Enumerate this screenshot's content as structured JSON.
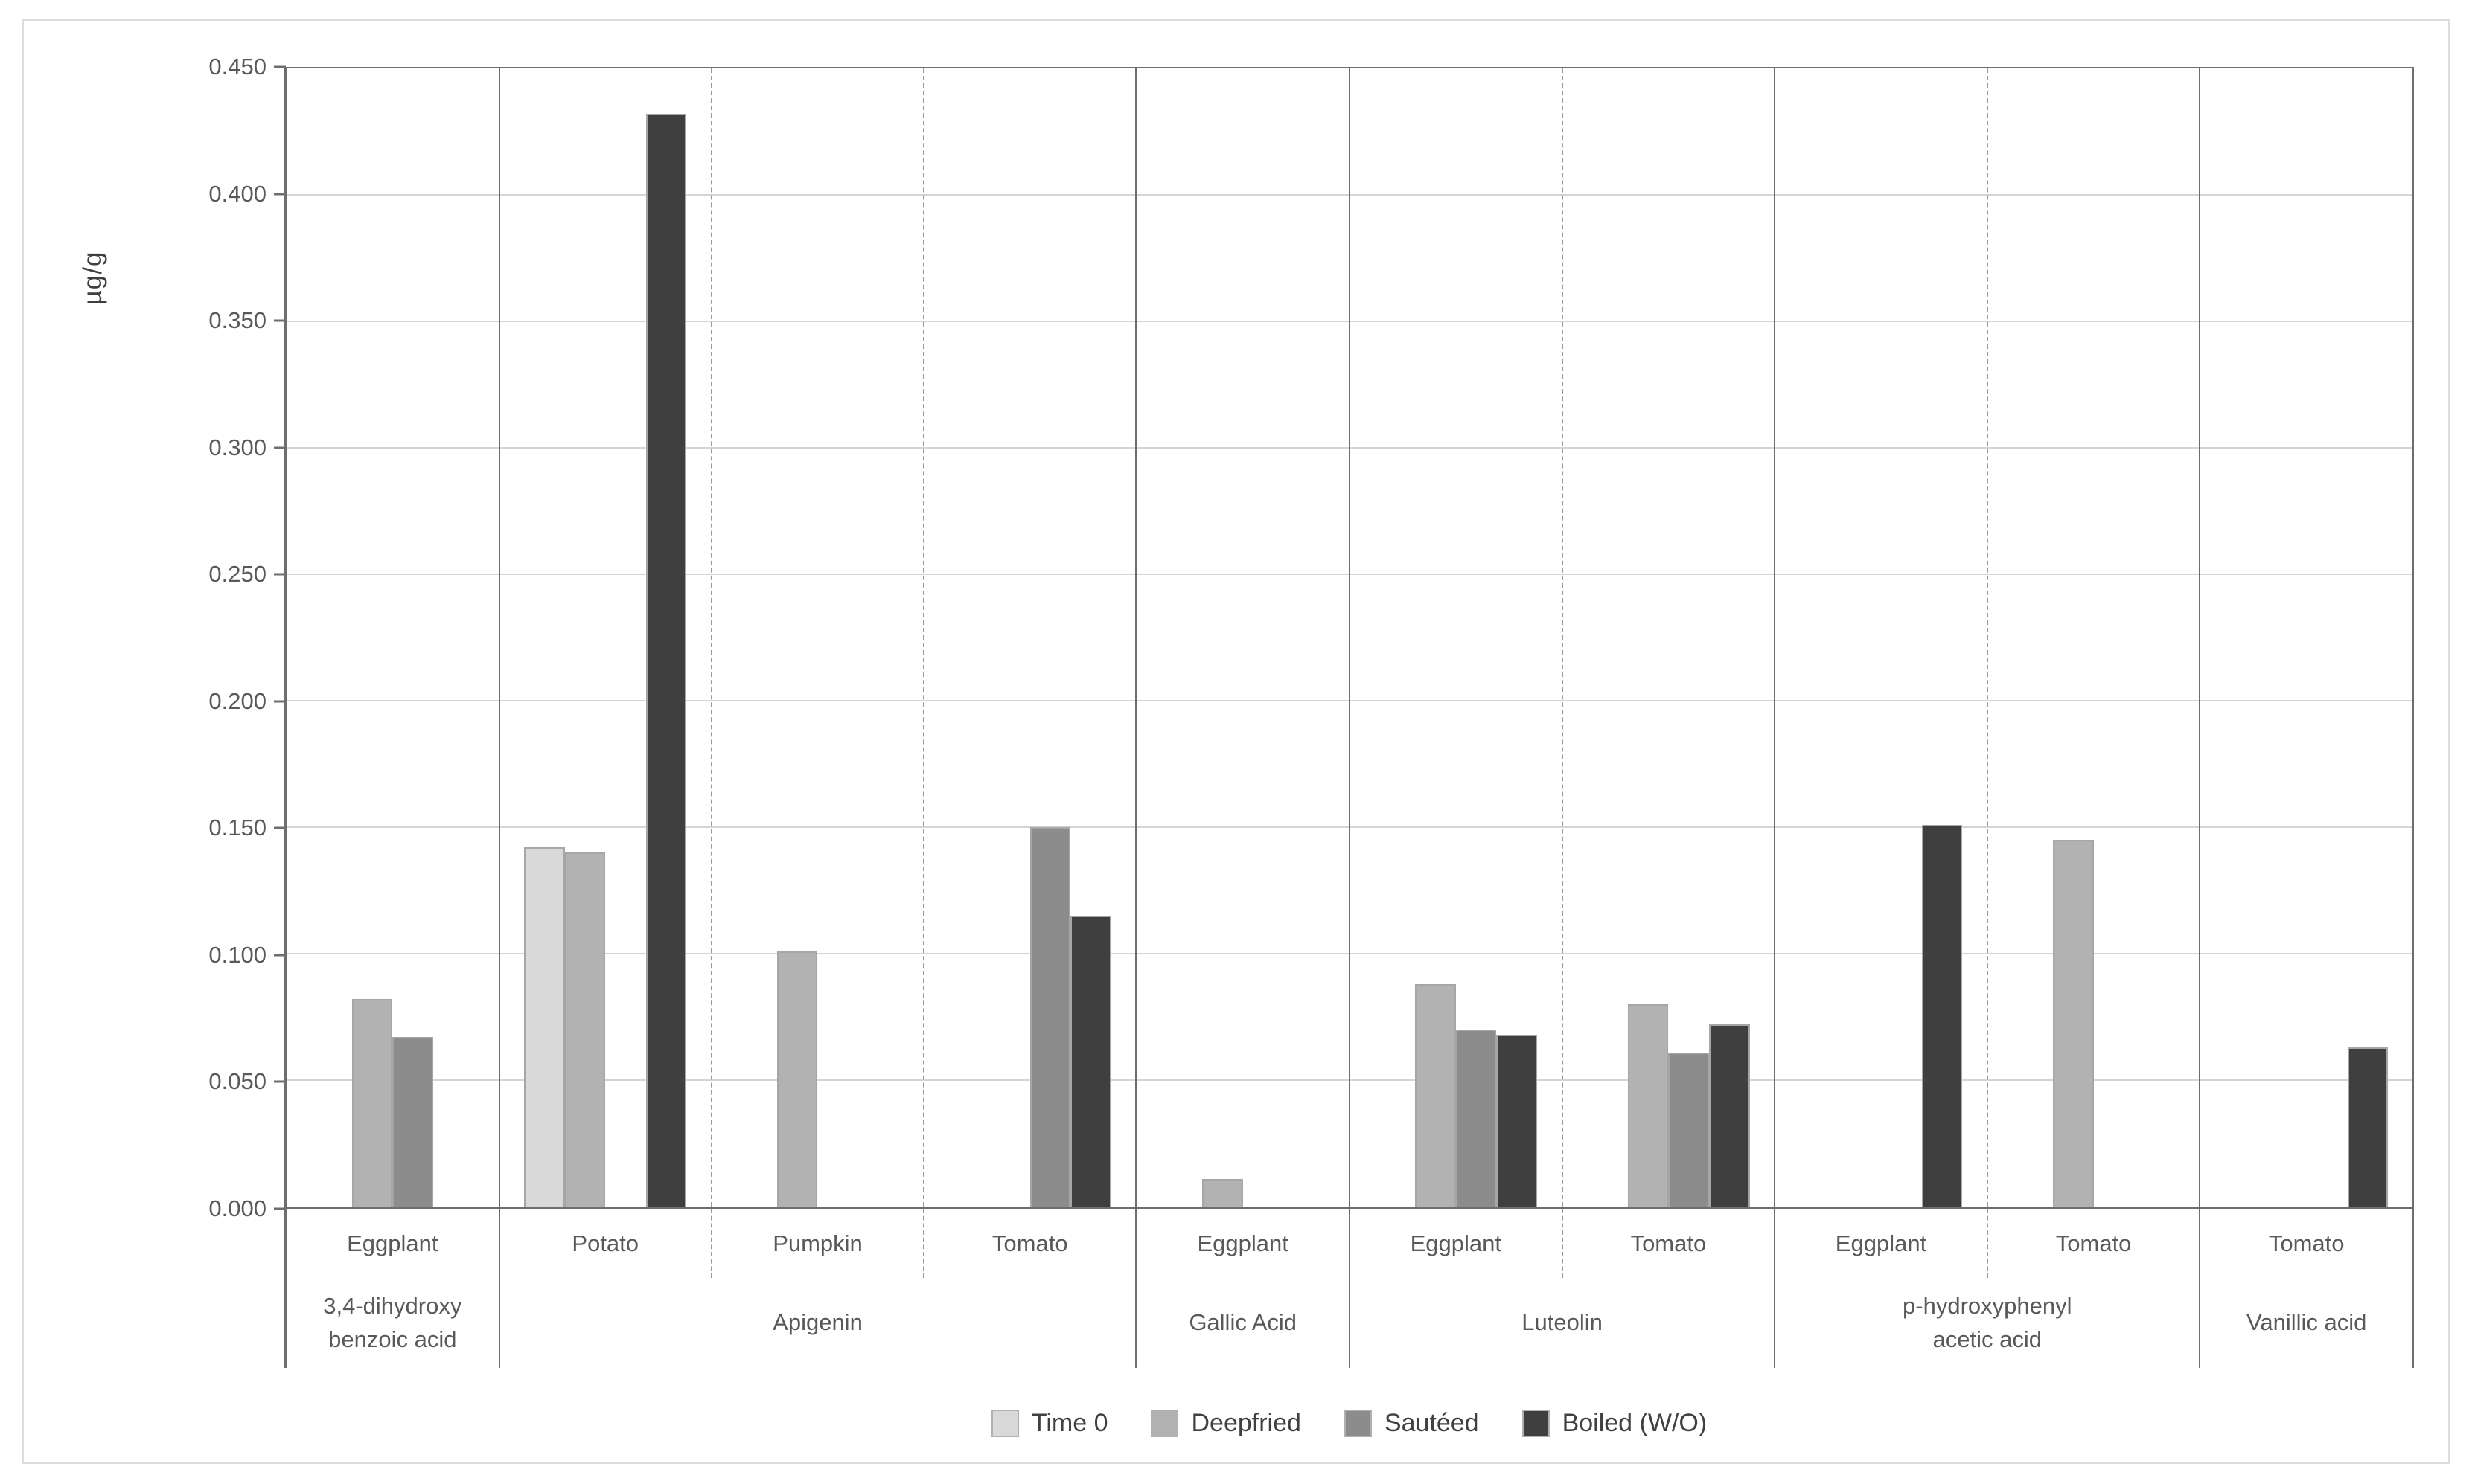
{
  "chart_data": {
    "type": "bar",
    "title": "",
    "xlabel": "",
    "ylabel": "µg/g",
    "grid": true,
    "legend_position": "bottom",
    "y_axis": {
      "min": 0,
      "max": 0.45,
      "step": 0.05,
      "tick_labels": [
        "0.450",
        "0.400",
        "0.350",
        "0.300",
        "0.250",
        "0.200",
        "0.150",
        "0.100",
        "0.050",
        "0.000"
      ]
    },
    "series": [
      {
        "name": "Time 0",
        "color": "#d9d9d9"
      },
      {
        "name": "Deepfried",
        "color": "#b2b2b2"
      },
      {
        "name": "Sautéed",
        "color": "#8c8c8c"
      },
      {
        "name": "Boiled (W/O)",
        "color": "#3f3f3f"
      }
    ],
    "groups": [
      {
        "compound": "3,4-dihydroxy benzoic acid",
        "vegetables": [
          {
            "name": "Eggplant",
            "values": [
              null,
              0.082,
              0.067,
              null
            ]
          }
        ]
      },
      {
        "compound": "Apigenin",
        "vegetables": [
          {
            "name": "Potato",
            "values": [
              0.142,
              0.14,
              null,
              0.432
            ]
          },
          {
            "name": "Pumpkin",
            "values": [
              null,
              0.101,
              null,
              null
            ]
          },
          {
            "name": "Tomato",
            "values": [
              null,
              null,
              0.15,
              0.115
            ]
          }
        ]
      },
      {
        "compound": "Gallic Acid",
        "vegetables": [
          {
            "name": "Eggplant",
            "values": [
              null,
              0.011,
              null,
              null
            ]
          }
        ]
      },
      {
        "compound": "Luteolin",
        "vegetables": [
          {
            "name": "Eggplant",
            "values": [
              null,
              0.088,
              0.07,
              0.068
            ]
          },
          {
            "name": "Tomato",
            "values": [
              null,
              0.08,
              0.061,
              0.072
            ]
          }
        ]
      },
      {
        "compound": "p-hydroxyphenyl acetic acid",
        "vegetables": [
          {
            "name": "Eggplant",
            "values": [
              null,
              null,
              null,
              0.151
            ]
          },
          {
            "name": "Tomato",
            "values": [
              null,
              0.145,
              null,
              null
            ]
          }
        ]
      },
      {
        "compound": "Vanillic acid",
        "vegetables": [
          {
            "name": "Tomato",
            "values": [
              null,
              null,
              null,
              0.063
            ]
          }
        ]
      }
    ]
  },
  "colors": {
    "plot_border": "#6e6e6e",
    "gridline": "#d4d4d4",
    "dashed_separator": "#9a9a9a",
    "bar_border": "#a6a6a6",
    "tick_text": "#595959",
    "frame_border": "#dcdcdc"
  }
}
